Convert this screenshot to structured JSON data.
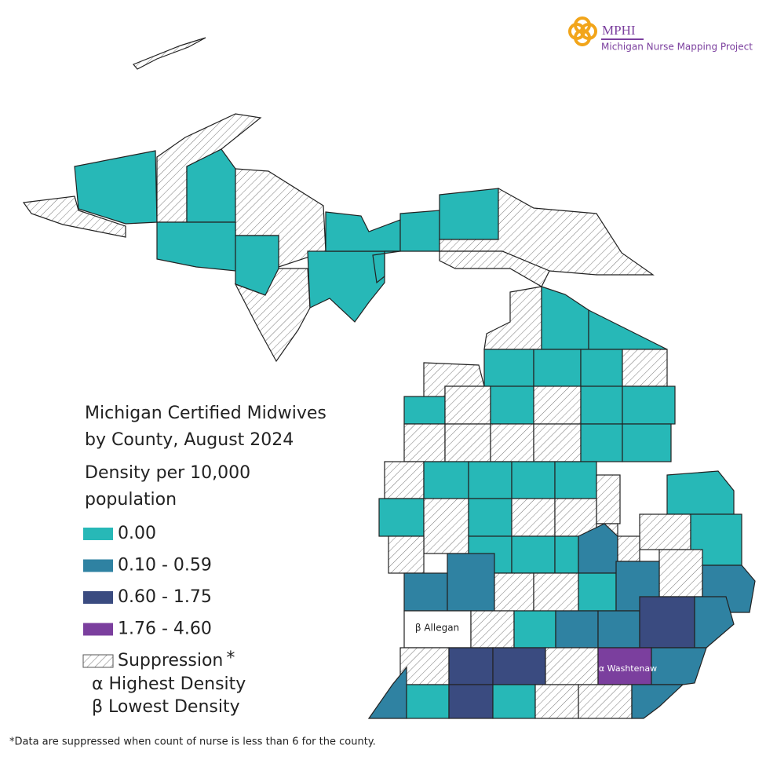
{
  "logo": {
    "name": "MPHI",
    "project": "Michigan Nurse Mapping Project"
  },
  "title": [
    "Michigan Certified Midwives",
    "by County, August 2024"
  ],
  "subtitle": [
    "Density per 10,000",
    "population"
  ],
  "legend": [
    {
      "label": "0.00",
      "color": "#27b8b7"
    },
    {
      "label": "0.10 - 0.59",
      "color": "#2f82a2"
    },
    {
      "label": "0.60 - 1.75",
      "color": "#3a4b80"
    },
    {
      "label": "1.76 - 4.60",
      "color": "#7b3f9e"
    },
    {
      "label": "Suppression",
      "marker": "*",
      "pattern": "hatch"
    }
  ],
  "keys": [
    "α Highest Density",
    "β Lowest Density"
  ],
  "county_labels": {
    "lowest": "β Allegan",
    "highest": "α Washtenaw"
  },
  "footnote": "*Data are suppressed when count of nurse is less than 6 for the county."
}
